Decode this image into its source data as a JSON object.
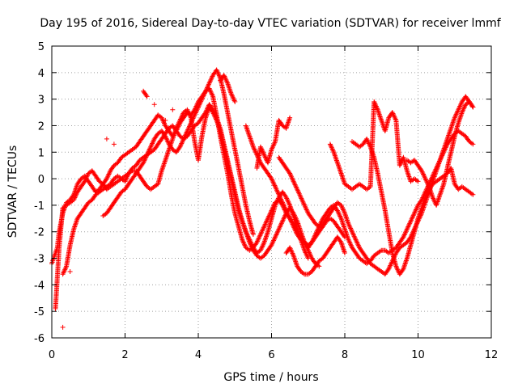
{
  "chart_data": {
    "type": "scatter",
    "title": "Day 195 of 2016, Sidereal Day-to-day VTEC variation (SDTVAR) for receiver lmmf",
    "xlabel": "GPS time / hours",
    "ylabel": "SDTVAR / TECUs",
    "xlim": [
      0,
      12
    ],
    "ylim": [
      -6,
      5
    ],
    "xticks": [
      "0",
      "2",
      "4",
      "6",
      "8",
      "10",
      "12"
    ],
    "yticks": [
      "5",
      "4",
      "3",
      "2",
      "1",
      "0",
      "-1",
      "-2",
      "-3",
      "-4",
      "-5",
      "-6"
    ],
    "grid": true,
    "marker": "+",
    "color": "#ff0000",
    "series": [
      {
        "x": [
          0.0,
          0.05,
          0.1,
          0.15,
          0.2,
          0.3,
          0.4,
          0.5,
          0.6,
          0.7,
          0.8,
          0.9,
          1.0,
          1.1,
          1.2,
          1.3,
          1.4,
          1.5,
          1.6,
          1.7,
          1.8,
          1.9,
          2.0,
          2.1,
          2.2,
          2.3,
          2.4,
          2.5,
          2.6,
          2.7,
          2.8,
          2.9,
          3.0,
          3.1,
          3.2,
          3.3,
          3.4,
          3.5,
          3.6,
          3.7,
          3.8,
          3.9,
          4.0,
          4.1,
          4.2,
          4.3,
          4.4,
          4.5,
          4.6,
          4.7,
          4.8,
          4.9,
          5.0,
          5.1,
          5.2,
          5.3,
          5.4,
          5.5,
          5.6,
          5.7,
          5.8,
          5.9,
          6.0,
          6.1,
          6.2,
          6.3,
          6.4,
          6.5,
          6.6,
          6.7,
          6.8,
          6.9,
          7.0,
          7.1,
          7.2,
          7.3,
          7.4,
          7.5,
          7.6,
          7.7,
          7.8,
          7.9,
          8.0
        ],
        "y": [
          -3.2,
          -3.0,
          -2.8,
          -2.6,
          -2.0,
          -1.3,
          -0.9,
          -0.8,
          -0.6,
          -0.2,
          0.0,
          0.1,
          -0.1,
          -0.3,
          -0.5,
          -0.4,
          -0.2,
          0.0,
          0.3,
          0.5,
          0.6,
          0.8,
          0.9,
          1.0,
          1.1,
          1.2,
          1.4,
          1.6,
          1.8,
          2.0,
          2.2,
          2.4,
          2.3,
          2.0,
          1.8,
          1.6,
          1.8,
          2.1,
          2.3,
          2.5,
          2.4,
          2.6,
          2.9,
          3.1,
          3.3,
          3.4,
          3.1,
          2.4,
          1.6,
          0.9,
          0.2,
          -0.6,
          -1.3,
          -1.8,
          -2.3,
          -2.6,
          -2.7,
          -2.6,
          -2.4,
          -2.1,
          -1.8,
          -1.5,
          -1.2,
          -0.9,
          -0.8,
          -1.0,
          -1.3,
          -1.5,
          -1.8,
          -2.1,
          -2.3,
          -2.4,
          -2.5,
          -2.4,
          -2.2,
          -2.0,
          -1.8,
          -1.6,
          -1.5,
          -1.6,
          -1.8,
          -2.0,
          -2.2
        ]
      },
      {
        "x": [
          0.3,
          0.4,
          0.5,
          0.6,
          0.7,
          0.8,
          0.9,
          1.0,
          1.1,
          1.2,
          1.3,
          1.4,
          1.5,
          1.6,
          1.7,
          1.8,
          1.9,
          2.0,
          2.1,
          2.2,
          2.3,
          2.4,
          2.5,
          2.6,
          2.7,
          2.8,
          2.9,
          3.0,
          3.1,
          3.2,
          3.3,
          3.4,
          3.5,
          3.6,
          3.7,
          3.8,
          3.9,
          4.0,
          4.1,
          4.2,
          4.3,
          4.4,
          4.5,
          4.6,
          4.7,
          4.8,
          4.9,
          5.0,
          5.1,
          5.2,
          5.3,
          5.4,
          5.5,
          5.6,
          5.7,
          5.8,
          5.9,
          6.0,
          6.1,
          6.2,
          6.3,
          6.4,
          6.5,
          6.6,
          6.7,
          6.8,
          6.9,
          7.0,
          7.1,
          7.2,
          7.3
        ],
        "y": [
          -3.6,
          -3.3,
          -2.5,
          -1.9,
          -1.5,
          -1.3,
          -1.1,
          -0.9,
          -0.8,
          -0.6,
          -0.5,
          -0.4,
          -0.3,
          -0.2,
          0.0,
          0.1,
          0.0,
          -0.1,
          0.2,
          0.4,
          0.5,
          0.7,
          0.8,
          0.9,
          1.0,
          1.1,
          1.3,
          1.5,
          1.7,
          1.9,
          2.0,
          1.8,
          1.6,
          1.5,
          1.6,
          1.8,
          2.0,
          2.1,
          2.3,
          2.5,
          2.8,
          2.6,
          2.3,
          1.9,
          1.3,
          0.7,
          0.1,
          -0.5,
          -1.1,
          -1.6,
          -2.0,
          -2.4,
          -2.7,
          -2.9,
          -3.0,
          -2.9,
          -2.7,
          -2.5,
          -2.2,
          -1.9,
          -1.6,
          -1.3,
          -1.1,
          -1.3,
          -1.6,
          -2.0,
          -2.4,
          -2.7,
          -3.0,
          -3.2,
          -3.3
        ]
      },
      {
        "x": [
          1.4,
          1.5,
          1.6,
          1.7,
          1.8,
          1.9,
          2.0,
          2.1,
          2.2,
          2.3,
          2.4,
          2.5,
          2.6,
          2.7,
          2.8,
          2.9,
          3.0,
          3.1,
          3.2,
          3.3,
          3.4,
          3.5,
          3.6,
          3.7,
          3.8,
          3.9,
          4.0,
          4.1,
          4.2,
          4.3,
          4.4,
          4.5,
          4.6,
          4.7,
          4.8,
          4.9,
          5.0,
          5.1,
          5.2,
          5.3,
          5.4,
          5.5
        ],
        "y": [
          -1.4,
          -1.3,
          -1.1,
          -0.9,
          -0.7,
          -0.5,
          -0.4,
          -0.2,
          0.0,
          0.2,
          0.4,
          0.6,
          0.9,
          1.2,
          1.5,
          1.7,
          1.8,
          1.6,
          1.3,
          1.1,
          1.0,
          1.2,
          1.5,
          1.8,
          2.1,
          2.4,
          2.7,
          3.0,
          3.3,
          3.6,
          3.9,
          4.1,
          3.8,
          3.2,
          2.5,
          1.8,
          1.1,
          0.4,
          -0.3,
          -1.0,
          -1.6,
          -2.1
        ]
      },
      {
        "x": [
          0.1,
          0.2,
          0.3,
          0.4,
          0.5,
          0.6,
          0.7,
          0.8,
          0.9,
          1.0,
          1.1,
          1.2,
          1.3,
          1.4,
          1.5,
          1.6,
          1.7,
          1.8,
          1.9,
          2.0,
          2.1,
          2.2,
          2.3,
          2.4,
          2.5,
          2.6,
          2.7,
          2.8,
          2.9,
          3.0,
          3.1,
          3.2,
          3.3,
          3.4,
          3.5,
          3.6,
          3.7,
          3.8,
          3.9,
          4.0,
          4.1,
          4.2,
          4.3,
          4.4,
          4.5,
          4.6,
          4.7,
          4.8,
          4.9,
          5.0,
          5.1,
          5.2,
          5.3,
          5.4,
          5.5,
          5.6,
          5.7,
          5.8,
          5.9,
          6.0,
          6.1,
          6.2,
          6.3,
          6.4,
          6.5,
          6.6,
          6.7,
          6.8,
          6.9,
          7.0
        ],
        "y": [
          -4.9,
          -2.6,
          -1.1,
          -1.0,
          -0.9,
          -0.8,
          -0.5,
          -0.3,
          -0.1,
          0.2,
          0.3,
          0.1,
          -0.1,
          -0.2,
          -0.4,
          -0.3,
          -0.2,
          -0.1,
          0.0,
          0.1,
          0.2,
          0.3,
          0.3,
          0.1,
          -0.1,
          -0.3,
          -0.4,
          -0.3,
          -0.2,
          0.3,
          0.7,
          1.1,
          1.5,
          1.9,
          2.2,
          2.5,
          2.6,
          2.3,
          1.4,
          0.7,
          1.6,
          2.3,
          2.7,
          2.5,
          2.2,
          1.8,
          1.2,
          0.6,
          0.0,
          -0.6,
          -1.2,
          -1.6,
          -2.0,
          -2.3,
          -2.6,
          -2.8,
          -2.7,
          -2.4,
          -2.0,
          -1.5,
          -1.0,
          -0.7,
          -0.5,
          -0.7,
          -1.0,
          -1.4,
          -1.9,
          -2.3,
          -2.7,
          -3.0
        ]
      },
      {
        "x": [
          5.3,
          5.4,
          5.5,
          5.6,
          5.7,
          5.8,
          5.9,
          6.0,
          6.1,
          6.2,
          6.3,
          6.4,
          6.5,
          6.6,
          6.7,
          6.8,
          6.9,
          7.0,
          7.1,
          7.2,
          7.3,
          7.4,
          7.5,
          7.6,
          7.7,
          7.8,
          7.9,
          8.0,
          8.1,
          8.2,
          8.3,
          8.4,
          8.5,
          8.6,
          8.7,
          8.8,
          8.9,
          9.0,
          9.1,
          9.2,
          9.3,
          9.4,
          9.5,
          9.6,
          9.7,
          9.8,
          9.9,
          10.0,
          10.1,
          10.2,
          10.3,
          10.4,
          10.5,
          10.6,
          10.7,
          10.8,
          10.9,
          11.0,
          11.1,
          11.2,
          11.3,
          11.4,
          11.5
        ],
        "y": [
          2.0,
          1.6,
          1.2,
          0.9,
          0.6,
          0.4,
          0.2,
          0.0,
          -0.3,
          -0.6,
          -0.9,
          -1.2,
          -1.5,
          -1.7,
          -2.0,
          -2.2,
          -2.4,
          -2.6,
          -2.4,
          -2.1,
          -1.8,
          -1.5,
          -1.3,
          -1.1,
          -1.0,
          -1.2,
          -1.5,
          -1.9,
          -2.3,
          -2.6,
          -2.8,
          -3.0,
          -3.1,
          -3.2,
          -3.1,
          -2.9,
          -2.8,
          -2.7,
          -2.7,
          -2.8,
          -2.7,
          -2.6,
          -2.4,
          -2.2,
          -1.9,
          -1.6,
          -1.3,
          -1.0,
          -0.8,
          -0.5,
          -0.2,
          0.1,
          0.4,
          0.7,
          1.0,
          1.3,
          1.5,
          1.7,
          1.8,
          1.7,
          1.6,
          1.4,
          1.3
        ]
      },
      {
        "x": [
          6.2,
          6.3,
          6.4,
          6.5,
          6.6,
          6.7,
          6.8,
          6.9,
          7.0,
          7.1,
          7.2,
          7.3,
          7.4,
          7.5,
          7.6,
          7.7,
          7.8,
          7.9,
          8.0,
          8.1,
          8.2,
          8.3,
          8.4,
          8.5,
          8.6,
          8.7,
          8.8,
          8.9,
          9.0,
          9.1,
          9.2,
          9.3,
          9.4,
          9.5,
          9.6,
          9.7,
          9.8,
          9.9,
          10.0,
          10.1,
          10.2,
          10.3,
          10.4,
          10.5,
          10.6,
          10.7,
          10.8,
          10.9,
          11.0,
          11.1,
          11.2,
          11.3,
          11.4,
          11.5
        ],
        "y": [
          0.8,
          0.6,
          0.4,
          0.2,
          -0.1,
          -0.4,
          -0.7,
          -1.0,
          -1.3,
          -1.5,
          -1.7,
          -1.8,
          -1.7,
          -1.5,
          -1.3,
          -1.1,
          -0.9,
          -1.0,
          -1.3,
          -1.7,
          -2.0,
          -2.3,
          -2.6,
          -2.8,
          -3.0,
          -3.2,
          -3.3,
          -3.4,
          -3.5,
          -3.6,
          -3.4,
          -3.1,
          -2.8,
          -2.6,
          -2.5,
          -2.4,
          -2.2,
          -1.9,
          -1.6,
          -1.3,
          -0.9,
          -0.5,
          -0.1,
          0.3,
          0.7,
          1.1,
          1.5,
          1.9,
          2.3,
          2.6,
          2.9,
          3.1,
          2.9,
          2.7
        ]
      },
      {
        "x": [
          8.2,
          8.3,
          8.4,
          8.5,
          8.6,
          8.7,
          8.8,
          8.9,
          9.0,
          9.1,
          9.2,
          9.3,
          9.4,
          9.5,
          9.6,
          9.7,
          9.8,
          9.9,
          10.0,
          10.1,
          10.2,
          10.3,
          10.4,
          10.5,
          10.6,
          10.7,
          10.8,
          10.9,
          11.0,
          11.1,
          11.2,
          11.3,
          11.4,
          11.5
        ],
        "y": [
          1.4,
          1.3,
          1.2,
          1.3,
          1.5,
          1.2,
          0.8,
          0.2,
          -0.5,
          -1.2,
          -2.0,
          -2.8,
          -3.3,
          -3.6,
          -3.4,
          -3.0,
          -2.5,
          -2.0,
          -1.5,
          -1.1,
          -0.7,
          -0.4,
          -0.2,
          -0.1,
          0.0,
          0.1,
          0.2,
          0.4,
          -0.2,
          -0.4,
          -0.3,
          -0.4,
          -0.5,
          -0.6
        ]
      },
      {
        "x": [
          6.4,
          6.5,
          6.6,
          6.7,
          6.8,
          6.9,
          7.0,
          7.1,
          7.2,
          7.3,
          7.4,
          7.5,
          7.6,
          7.7,
          7.8,
          7.9,
          8.0
        ],
        "y": [
          -2.8,
          -2.6,
          -2.9,
          -3.3,
          -3.5,
          -3.6,
          -3.6,
          -3.5,
          -3.3,
          -3.1,
          -3.0,
          -2.8,
          -2.6,
          -2.4,
          -2.2,
          -2.4,
          -2.8
        ]
      },
      {
        "x": [
          7.6,
          7.7,
          7.8,
          7.9,
          8.0,
          8.1,
          8.2,
          8.3,
          8.4,
          8.5,
          8.6,
          8.7,
          8.8,
          8.9,
          9.0,
          9.1,
          9.2,
          9.3,
          9.4,
          9.5,
          9.6,
          9.7,
          9.8,
          9.9,
          10.0
        ],
        "y": [
          1.3,
          1.0,
          0.6,
          0.2,
          -0.2,
          -0.3,
          -0.4,
          -0.3,
          -0.2,
          -0.3,
          -0.4,
          -0.3,
          2.9,
          2.6,
          2.2,
          1.8,
          2.3,
          2.5,
          2.2,
          0.5,
          0.8,
          0.3,
          -0.1,
          0.0,
          -0.1
        ]
      },
      {
        "x": [
          9.7,
          9.8,
          9.9,
          10.0,
          10.1,
          10.2,
          10.3,
          10.4,
          10.5,
          10.6,
          10.7,
          10.8,
          10.9,
          11.0,
          11.1,
          11.2,
          11.3,
          11.4,
          11.5
        ],
        "y": [
          0.7,
          0.6,
          0.7,
          0.5,
          0.3,
          0.0,
          -0.3,
          -0.7,
          -1.0,
          -0.6,
          -0.2,
          0.4,
          1.0,
          1.6,
          2.1,
          2.5,
          2.8,
          2.9,
          2.7
        ]
      },
      {
        "x": [
          5.6,
          5.7,
          5.8,
          5.9,
          6.0,
          6.1,
          6.2,
          6.3,
          6.4,
          6.5
        ],
        "y": [
          0.4,
          1.2,
          0.9,
          0.6,
          1.1,
          1.4,
          2.2,
          2.0,
          1.9,
          2.3
        ]
      },
      {
        "x": [
          0.3,
          0.5,
          1.5,
          1.7,
          2.5,
          2.6,
          2.8,
          3.1,
          3.3,
          4.6,
          4.7,
          4.8,
          4.9,
          5.0
        ],
        "y": [
          -5.6,
          -3.5,
          1.5,
          1.3,
          3.3,
          3.1,
          2.8,
          2.2,
          2.6,
          3.7,
          3.9,
          3.6,
          3.2,
          2.9
        ]
      }
    ]
  }
}
